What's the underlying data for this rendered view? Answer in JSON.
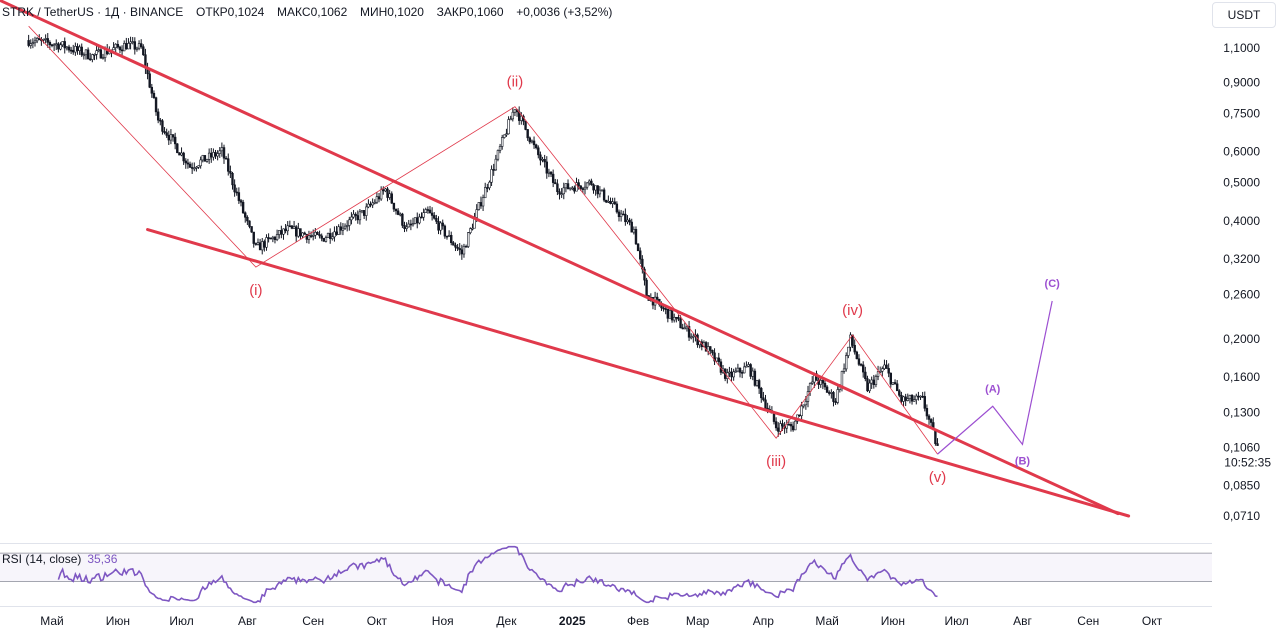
{
  "legend": {
    "symbol": "STRK / TetherUS · 1Д · BINANCE",
    "open": "ОТКР0,1024",
    "high": "МАКС0,1062",
    "low": "МИН0,1020",
    "close": "ЗАКР0,1060",
    "change": "+0,0036 (+3,52%)"
  },
  "currency": "USDT",
  "countdown": "10:52:35",
  "rsi": {
    "label": "RSI (14, close)",
    "value": "35,36",
    "levels": [
      "80,00",
      "40,00"
    ]
  },
  "colors": {
    "bull": "#131722",
    "bear": "#131722",
    "wedge": "#e0394b",
    "wave": "#e0394b",
    "projection": "#9c4fd1",
    "rsi": "#7e57c2"
  },
  "chart_data": [
    {
      "type": "candlestick",
      "title": "STRK / TetherUS · 1Д · BINANCE",
      "scale": "log",
      "ylim": [
        0.065,
        1.25
      ],
      "y_ticks": [
        "1,1000",
        "0,9000",
        "0,7500",
        "0,6000",
        "0,5000",
        "0,4000",
        "0,3200",
        "0,2600",
        "0,2000",
        "0,1600",
        "0,1300",
        "0,1060",
        "0,0850",
        "0,0710"
      ],
      "x_ticks": [
        "Май",
        "Июн",
        "Июл",
        "Авг",
        "Сен",
        "Окт",
        "Ноя",
        "Дек",
        "2025",
        "Фев",
        "Мар",
        "Апр",
        "Май",
        "Июн",
        "Июл",
        "Авг",
        "Сен",
        "Окт"
      ],
      "price_path": [
        {
          "date": "2024-04-20",
          "price": 1.15
        },
        {
          "date": "2024-05-05",
          "price": 1.12
        },
        {
          "date": "2024-05-20",
          "price": 1.05
        },
        {
          "date": "2024-06-05",
          "price": 1.12
        },
        {
          "date": "2024-06-12",
          "price": 1.1
        },
        {
          "date": "2024-06-20",
          "price": 0.72
        },
        {
          "date": "2024-07-05",
          "price": 0.55
        },
        {
          "date": "2024-07-20",
          "price": 0.6
        },
        {
          "date": "2024-08-05",
          "price": 0.34
        },
        {
          "date": "2024-08-20",
          "price": 0.38
        },
        {
          "date": "2024-09-05",
          "price": 0.36
        },
        {
          "date": "2024-09-25",
          "price": 0.42
        },
        {
          "date": "2024-10-05",
          "price": 0.48
        },
        {
          "date": "2024-10-15",
          "price": 0.38
        },
        {
          "date": "2024-10-25",
          "price": 0.42
        },
        {
          "date": "2024-11-10",
          "price": 0.33
        },
        {
          "date": "2024-11-25",
          "price": 0.55
        },
        {
          "date": "2024-12-05",
          "price": 0.78
        },
        {
          "date": "2024-12-15",
          "price": 0.6
        },
        {
          "date": "2024-12-25",
          "price": 0.48
        },
        {
          "date": "2025-01-10",
          "price": 0.5
        },
        {
          "date": "2025-01-30",
          "price": 0.38
        },
        {
          "date": "2025-02-05",
          "price": 0.26
        },
        {
          "date": "2025-02-20",
          "price": 0.22
        },
        {
          "date": "2025-03-05",
          "price": 0.19
        },
        {
          "date": "2025-03-15",
          "price": 0.16
        },
        {
          "date": "2025-03-25",
          "price": 0.17
        },
        {
          "date": "2025-04-07",
          "price": 0.12
        },
        {
          "date": "2025-04-15",
          "price": 0.12
        },
        {
          "date": "2025-04-25",
          "price": 0.16
        },
        {
          "date": "2025-05-05",
          "price": 0.14
        },
        {
          "date": "2025-05-12",
          "price": 0.2
        },
        {
          "date": "2025-05-20",
          "price": 0.15
        },
        {
          "date": "2025-05-28",
          "price": 0.17
        },
        {
          "date": "2025-06-05",
          "price": 0.14
        },
        {
          "date": "2025-06-15",
          "price": 0.14
        },
        {
          "date": "2025-06-22",
          "price": 0.106
        }
      ],
      "wave_labels": [
        {
          "label": "(i)",
          "date": "2024-08-05",
          "price": 0.305
        },
        {
          "label": "(ii)",
          "date": "2024-12-05",
          "price": 0.78
        },
        {
          "label": "(iii)",
          "date": "2025-04-07",
          "price": 0.112
        },
        {
          "label": "(iv)",
          "date": "2025-05-13",
          "price": 0.205
        },
        {
          "label": "(v)",
          "date": "2025-06-22",
          "price": 0.102
        }
      ],
      "projection": [
        {
          "label": "",
          "date": "2025-06-22",
          "price": 0.102
        },
        {
          "label": "(A)",
          "date": "2025-07-18",
          "price": 0.135
        },
        {
          "label": "(B)",
          "date": "2025-08-01",
          "price": 0.108
        },
        {
          "label": "(C)",
          "date": "2025-08-15",
          "price": 0.25
        }
      ],
      "wedge_lines": [
        {
          "name": "upper",
          "from": {
            "date": "2024-04-01",
            "price": 1.5
          },
          "to": {
            "date": "2025-09-15",
            "price": 0.072
          }
        },
        {
          "name": "lower",
          "from": {
            "date": "2024-06-15",
            "price": 0.38
          },
          "to": {
            "date": "2025-09-20",
            "price": 0.071
          }
        }
      ]
    },
    {
      "type": "line",
      "title": "RSI (14, close)",
      "ylim": [
        10,
        90
      ],
      "levels": [
        80,
        40
      ],
      "series": [
        {
          "name": "RSI (14, close)",
          "last": 35.36
        }
      ]
    }
  ]
}
